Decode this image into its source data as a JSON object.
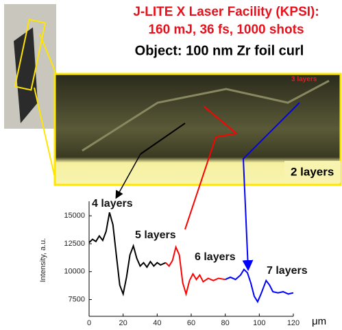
{
  "header": {
    "line1": "J-LITE X Laser Facility (KPSI):",
    "line2": "160 mJ, 36 fs, 1000 shots",
    "line3": "Object: 100 nm Zr foil  curl"
  },
  "image_labels": {
    "top": "3 layers",
    "bottom": "2 layers"
  },
  "chart_data": {
    "type": "line",
    "y_label": "Intensity, a.u.",
    "x_unit": "μm",
    "annotations": [
      "4 layers",
      "5 layers",
      "6 layers",
      "7 layers"
    ],
    "xlim": [
      0,
      120
    ],
    "xticks": [
      0,
      20,
      40,
      60,
      80,
      100,
      120
    ],
    "ylim": [
      6000,
      16300
    ],
    "yticks": [
      7500,
      10000,
      12500,
      15000
    ],
    "series": [
      {
        "color": "#000000",
        "x": [
          0,
          2,
          4,
          6,
          8,
          10,
          12,
          14,
          16,
          18,
          20,
          22,
          24,
          26,
          28,
          30,
          32,
          34,
          36,
          38,
          40,
          42,
          45
        ],
        "values": [
          12600,
          12900,
          12700,
          13200,
          12800,
          13600,
          15300,
          14200,
          11500,
          8800,
          8000,
          9500,
          11500,
          12300,
          11200,
          10500,
          10800,
          10400,
          10900,
          10500,
          10800,
          10600,
          10800
        ]
      },
      {
        "color": "#ff0000",
        "x": [
          45,
          47,
          49,
          51,
          53,
          55,
          57,
          59,
          61,
          63,
          65,
          67,
          70,
          73,
          76,
          80
        ],
        "values": [
          10800,
          10500,
          11000,
          12200,
          11500,
          9000,
          8000,
          9200,
          9800,
          9300,
          9700,
          9100,
          9400,
          9200,
          9400,
          9300
        ]
      },
      {
        "color": "#0000ff",
        "x": [
          80,
          83,
          86,
          89,
          91,
          93,
          95,
          97,
          99,
          101,
          104,
          106,
          108,
          111,
          114,
          117,
          120
        ],
        "values": [
          9300,
          9500,
          9300,
          9700,
          10200,
          9900,
          9000,
          7800,
          7300,
          8000,
          9200,
          8800,
          8200,
          8100,
          8200,
          8000,
          8100
        ]
      }
    ]
  }
}
